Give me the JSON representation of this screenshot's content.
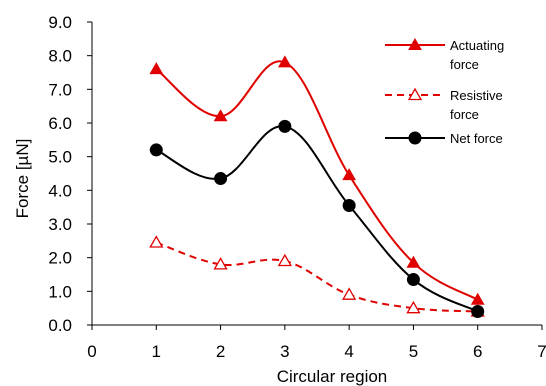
{
  "chart_data": {
    "type": "line",
    "title": "",
    "xlabel": "Circular region",
    "ylabel": "Force [µN]",
    "xlim": [
      0,
      7
    ],
    "ylim": [
      0,
      9
    ],
    "x_ticks": [
      "0",
      "1",
      "2",
      "3",
      "4",
      "5",
      "6",
      "7"
    ],
    "y_ticks": [
      "0.0",
      "1.0",
      "2.0",
      "3.0",
      "4.0",
      "5.0",
      "6.0",
      "7.0",
      "8.0",
      "9.0"
    ],
    "x": [
      1,
      2,
      3,
      4,
      5,
      6
    ],
    "grid": false,
    "legend_position": "top-right",
    "series": [
      {
        "name": "Actuating force",
        "legend_lines": [
          "Actuating",
          "force"
        ],
        "values": [
          7.6,
          6.2,
          7.8,
          4.45,
          1.85,
          0.75
        ],
        "color": "#e00000",
        "line_style": "solid",
        "marker": "filled-triangle"
      },
      {
        "name": "Resistive force",
        "legend_lines": [
          "Resistive",
          "force"
        ],
        "values": [
          2.45,
          1.8,
          1.9,
          0.9,
          0.5,
          0.4
        ],
        "color": "#e00000",
        "line_style": "dashed",
        "marker": "open-triangle"
      },
      {
        "name": "Net force",
        "legend_lines": [
          "Net force"
        ],
        "values": [
          5.2,
          4.35,
          5.9,
          3.55,
          1.35,
          0.4
        ],
        "color": "#000000",
        "line_style": "solid",
        "marker": "filled-circle"
      }
    ]
  }
}
